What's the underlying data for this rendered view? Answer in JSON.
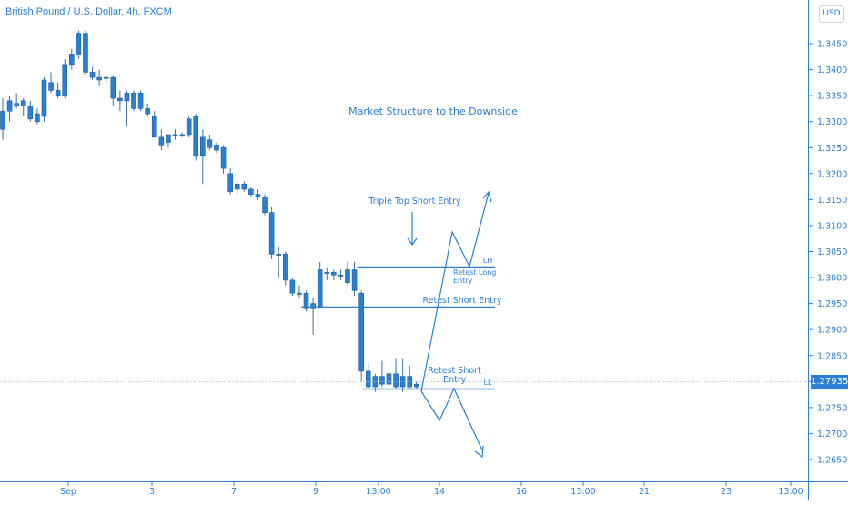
{
  "header": {
    "title": "British Pound / U.S. Dollar, 4h, FXCM",
    "currency_button": "USD"
  },
  "price_axis": {
    "ticks": [
      "1.34500",
      "1.34000",
      "1.33500",
      "1.33000",
      "1.32500",
      "1.32000",
      "1.31500",
      "1.31000",
      "1.30500",
      "1.30000",
      "1.29500",
      "1.29000",
      "1.28500",
      "1.28000",
      "1.27500",
      "1.27000",
      "1.26500"
    ],
    "current_price": "1.27935"
  },
  "time_axis": {
    "ticks": [
      "Sep",
      "3",
      "7",
      "9",
      "13:00",
      "14",
      "16",
      "13:00",
      "21",
      "23",
      "13:00"
    ]
  },
  "colors": {
    "accent": "#2a7fd4",
    "candle_fill": "#2a7fd4",
    "axis_line": "#2a7fd4",
    "price_line": "#9fc4ea"
  },
  "annotations": {
    "headline": "Market Structure to the Downside",
    "triple_top": "Triple Top Short Entry",
    "lh": "LH",
    "retest_long": "Retest Long Entry",
    "retest_short_upper": "Retest Short Entry",
    "retest_short_lower": "Retest Short Entry",
    "ll": "LL"
  },
  "chart_data": {
    "type": "candlestick",
    "title": "British Pound / U.S. Dollar, 4h, FXCM",
    "ylim": [
      1.262,
      1.352
    ],
    "candles": [
      {
        "o": 1.3285,
        "h": 1.3345,
        "l": 1.3265,
        "c": 1.332
      },
      {
        "o": 1.332,
        "h": 1.335,
        "l": 1.33,
        "c": 1.334
      },
      {
        "o": 1.3335,
        "h": 1.3355,
        "l": 1.3325,
        "c": 1.333
      },
      {
        "o": 1.333,
        "h": 1.3345,
        "l": 1.331,
        "c": 1.334
      },
      {
        "o": 1.333,
        "h": 1.334,
        "l": 1.33,
        "c": 1.3305
      },
      {
        "o": 1.33,
        "h": 1.3325,
        "l": 1.3295,
        "c": 1.3315
      },
      {
        "o": 1.331,
        "h": 1.3385,
        "l": 1.33,
        "c": 1.338
      },
      {
        "o": 1.3375,
        "h": 1.3395,
        "l": 1.3355,
        "c": 1.336
      },
      {
        "o": 1.336,
        "h": 1.3375,
        "l": 1.3345,
        "c": 1.335
      },
      {
        "o": 1.335,
        "h": 1.342,
        "l": 1.3345,
        "c": 1.341
      },
      {
        "o": 1.341,
        "h": 1.344,
        "l": 1.34,
        "c": 1.343
      },
      {
        "o": 1.343,
        "h": 1.3475,
        "l": 1.342,
        "c": 1.347
      },
      {
        "o": 1.347,
        "h": 1.3475,
        "l": 1.339,
        "c": 1.3395
      },
      {
        "o": 1.3395,
        "h": 1.3405,
        "l": 1.338,
        "c": 1.3385
      },
      {
        "o": 1.3385,
        "h": 1.34,
        "l": 1.337,
        "c": 1.338
      },
      {
        "o": 1.3385,
        "h": 1.339,
        "l": 1.3375,
        "c": 1.3385
      },
      {
        "o": 1.3385,
        "h": 1.339,
        "l": 1.333,
        "c": 1.3345
      },
      {
        "o": 1.3345,
        "h": 1.336,
        "l": 1.332,
        "c": 1.334
      },
      {
        "o": 1.334,
        "h": 1.336,
        "l": 1.329,
        "c": 1.3355
      },
      {
        "o": 1.3355,
        "h": 1.336,
        "l": 1.332,
        "c": 1.3325
      },
      {
        "o": 1.3355,
        "h": 1.336,
        "l": 1.332,
        "c": 1.3325
      },
      {
        "o": 1.3325,
        "h": 1.3335,
        "l": 1.331,
        "c": 1.3315
      },
      {
        "o": 1.331,
        "h": 1.332,
        "l": 1.327,
        "c": 1.327
      },
      {
        "o": 1.327,
        "h": 1.3285,
        "l": 1.3245,
        "c": 1.3255
      },
      {
        "o": 1.326,
        "h": 1.3275,
        "l": 1.325,
        "c": 1.3275
      },
      {
        "o": 1.3275,
        "h": 1.3285,
        "l": 1.3265,
        "c": 1.3275
      },
      {
        "o": 1.3275,
        "h": 1.328,
        "l": 1.327,
        "c": 1.3275
      },
      {
        "o": 1.3275,
        "h": 1.331,
        "l": 1.327,
        "c": 1.3305
      },
      {
        "o": 1.331,
        "h": 1.3315,
        "l": 1.3225,
        "c": 1.3235
      },
      {
        "o": 1.3235,
        "h": 1.3285,
        "l": 1.318,
        "c": 1.327
      },
      {
        "o": 1.3265,
        "h": 1.3275,
        "l": 1.3245,
        "c": 1.325
      },
      {
        "o": 1.3255,
        "h": 1.326,
        "l": 1.324,
        "c": 1.3245
      },
      {
        "o": 1.325,
        "h": 1.3255,
        "l": 1.32,
        "c": 1.321
      },
      {
        "o": 1.32,
        "h": 1.321,
        "l": 1.316,
        "c": 1.3165
      },
      {
        "o": 1.317,
        "h": 1.3185,
        "l": 1.316,
        "c": 1.318
      },
      {
        "o": 1.318,
        "h": 1.3185,
        "l": 1.3165,
        "c": 1.317
      },
      {
        "o": 1.317,
        "h": 1.3175,
        "l": 1.3155,
        "c": 1.316
      },
      {
        "o": 1.316,
        "h": 1.317,
        "l": 1.315,
        "c": 1.3155
      },
      {
        "o": 1.3155,
        "h": 1.316,
        "l": 1.312,
        "c": 1.3125
      },
      {
        "o": 1.3125,
        "h": 1.3135,
        "l": 1.3035,
        "c": 1.3045
      },
      {
        "o": 1.3045,
        "h": 1.306,
        "l": 1.3,
        "c": 1.3045
      },
      {
        "o": 1.3045,
        "h": 1.305,
        "l": 1.2985,
        "c": 1.2995
      },
      {
        "o": 1.2995,
        "h": 1.3,
        "l": 1.2965,
        "c": 1.297
      },
      {
        "o": 1.297,
        "h": 1.2985,
        "l": 1.296,
        "c": 1.297
      },
      {
        "o": 1.297,
        "h": 1.2975,
        "l": 1.2935,
        "c": 1.294
      },
      {
        "o": 1.294,
        "h": 1.296,
        "l": 1.289,
        "c": 1.295
      },
      {
        "o": 1.2945,
        "h": 1.303,
        "l": 1.294,
        "c": 1.3015
      },
      {
        "o": 1.301,
        "h": 1.302,
        "l": 1.2995,
        "c": 1.301
      },
      {
        "o": 1.301,
        "h": 1.3015,
        "l": 1.2995,
        "c": 1.3005
      },
      {
        "o": 1.3005,
        "h": 1.3015,
        "l": 1.2995,
        "c": 1.3005
      },
      {
        "o": 1.299,
        "h": 1.303,
        "l": 1.2985,
        "c": 1.3015
      },
      {
        "o": 1.3015,
        "h": 1.303,
        "l": 1.2965,
        "c": 1.2975
      },
      {
        "o": 1.297,
        "h": 1.2975,
        "l": 1.28,
        "c": 1.282
      },
      {
        "o": 1.282,
        "h": 1.2835,
        "l": 1.2785,
        "c": 1.279
      },
      {
        "o": 1.279,
        "h": 1.2815,
        "l": 1.278,
        "c": 1.281
      },
      {
        "o": 1.281,
        "h": 1.284,
        "l": 1.279,
        "c": 1.2795
      },
      {
        "o": 1.2795,
        "h": 1.2825,
        "l": 1.278,
        "c": 1.2815
      },
      {
        "o": 1.2815,
        "h": 1.2845,
        "l": 1.2785,
        "c": 1.279
      },
      {
        "o": 1.279,
        "h": 1.2845,
        "l": 1.278,
        "c": 1.281
      },
      {
        "o": 1.281,
        "h": 1.283,
        "l": 1.2785,
        "c": 1.279
      },
      {
        "o": 1.279,
        "h": 1.28,
        "l": 1.2785,
        "c": 1.2795
      }
    ]
  }
}
